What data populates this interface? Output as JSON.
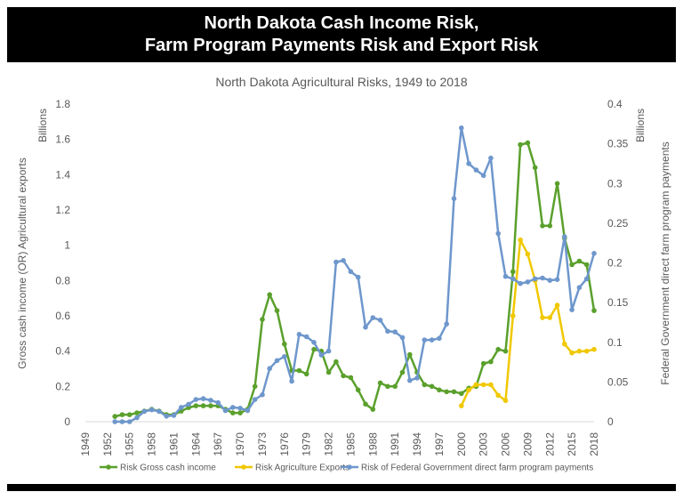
{
  "banner": {
    "line1": "North Dakota Cash Income Risk,",
    "line2": "Farm Program Payments Risk and Export Risk"
  },
  "chart_data": {
    "type": "line",
    "title": "North Dakota Agricultural Risks, 1949 to 2018",
    "left_axis": {
      "label": "Gross cash income  (OR)  Agricultural exports",
      "unit": "Billions",
      "ylim": [
        0,
        1.8
      ],
      "ticks": [
        "0",
        "0.2",
        "0.4",
        "0.6",
        "0.8",
        "1",
        "1.2",
        "1.4",
        "1.6",
        "1.8"
      ]
    },
    "right_axis": {
      "label": "Federal Government direct farm program payments",
      "unit": "Billions",
      "ylim": [
        0,
        0.4
      ],
      "ticks": [
        "0",
        "0.05",
        "0.1",
        "0.15",
        "0.2",
        "0.25",
        "0.3",
        "0.35",
        "0.4"
      ]
    },
    "x_axis": {
      "range": [
        1949,
        2018
      ],
      "ticks": [
        "1949",
        "1952",
        "1955",
        "1958",
        "1961",
        "1964",
        "1967",
        "1970",
        "1973",
        "1976",
        "1979",
        "1982",
        "1985",
        "1988",
        "1991",
        "1994",
        "1997",
        "2000",
        "2003",
        "2006",
        "2009",
        "2012",
        "2015",
        "2018"
      ]
    },
    "grid": false,
    "legend": "bottom",
    "series": [
      {
        "name": "Risk Gross cash income",
        "color": "#5aa02c",
        "axis": "left",
        "x": [
          1953,
          1954,
          1955,
          1956,
          1957,
          1958,
          1959,
          1960,
          1961,
          1962,
          1963,
          1964,
          1965,
          1966,
          1967,
          1968,
          1969,
          1970,
          1971,
          1972,
          1973,
          1974,
          1975,
          1976,
          1977,
          1978,
          1979,
          1980,
          1981,
          1982,
          1983,
          1984,
          1985,
          1986,
          1987,
          1988,
          1989,
          1990,
          1991,
          1992,
          1993,
          1994,
          1995,
          1996,
          1997,
          1998,
          1999,
          2000,
          2001,
          2002,
          2003,
          2004,
          2005,
          2006,
          2007,
          2008,
          2009,
          2010,
          2011,
          2012,
          2013,
          2014,
          2015,
          2016,
          2017,
          2018
        ],
        "values": [
          0.03,
          0.04,
          0.04,
          0.05,
          0.06,
          0.07,
          0.06,
          0.04,
          0.04,
          0.06,
          0.08,
          0.09,
          0.09,
          0.09,
          0.09,
          0.07,
          0.05,
          0.05,
          0.07,
          0.2,
          0.58,
          0.72,
          0.63,
          0.44,
          0.29,
          0.29,
          0.27,
          0.41,
          0.4,
          0.28,
          0.34,
          0.26,
          0.25,
          0.18,
          0.1,
          0.07,
          0.22,
          0.2,
          0.2,
          0.28,
          0.38,
          0.28,
          0.21,
          0.2,
          0.18,
          0.17,
          0.17,
          0.16,
          0.19,
          0.2,
          0.33,
          0.34,
          0.41,
          0.4,
          0.85,
          1.57,
          1.58,
          1.44,
          1.11,
          1.11,
          1.35,
          1.04,
          0.89,
          0.91,
          0.89,
          0.63
        ]
      },
      {
        "name": "Risk Agriculture Exports",
        "color": "#f0c800",
        "axis": "left",
        "x": [
          2000,
          2001,
          2002,
          2003,
          2004,
          2005,
          2006,
          2007,
          2008,
          2009,
          2010,
          2011,
          2012,
          2013,
          2014,
          2015,
          2016,
          2017,
          2018
        ],
        "values": [
          0.09,
          0.18,
          0.21,
          0.21,
          0.21,
          0.15,
          0.12,
          0.6,
          1.03,
          0.95,
          0.8,
          0.59,
          0.59,
          0.66,
          0.44,
          0.39,
          0.4,
          0.4,
          0.41
        ]
      },
      {
        "name": "Risk of Federal Government direct farm program payments",
        "color": "#6e97cc",
        "axis": "right",
        "x": [
          1953,
          1954,
          1955,
          1956,
          1957,
          1958,
          1959,
          1960,
          1961,
          1962,
          1963,
          1964,
          1965,
          1966,
          1967,
          1968,
          1969,
          1970,
          1971,
          1972,
          1973,
          1974,
          1975,
          1976,
          1977,
          1978,
          1979,
          1980,
          1981,
          1982,
          1983,
          1984,
          1985,
          1986,
          1987,
          1988,
          1989,
          1990,
          1991,
          1992,
          1993,
          1994,
          1995,
          1996,
          1997,
          1998,
          1999,
          2000,
          2001,
          2002,
          2003,
          2004,
          2005,
          2006,
          2007,
          2008,
          2009,
          2010,
          2011,
          2012,
          2013,
          2014,
          2015,
          2016,
          2017,
          2018
        ],
        "values": [
          0.0,
          0.0,
          0.0,
          0.005,
          0.013,
          0.015,
          0.013,
          0.007,
          0.008,
          0.018,
          0.022,
          0.028,
          0.029,
          0.027,
          0.024,
          0.014,
          0.018,
          0.017,
          0.014,
          0.028,
          0.034,
          0.067,
          0.077,
          0.082,
          0.051,
          0.11,
          0.107,
          0.1,
          0.084,
          0.089,
          0.201,
          0.203,
          0.189,
          0.182,
          0.119,
          0.131,
          0.128,
          0.114,
          0.113,
          0.106,
          0.052,
          0.055,
          0.103,
          0.103,
          0.105,
          0.123,
          0.281,
          0.37,
          0.325,
          0.317,
          0.31,
          0.332,
          0.237,
          0.183,
          0.18,
          0.174,
          0.176,
          0.18,
          0.181,
          0.178,
          0.179,
          0.233,
          0.141,
          0.169,
          0.18,
          0.212
        ]
      }
    ]
  }
}
